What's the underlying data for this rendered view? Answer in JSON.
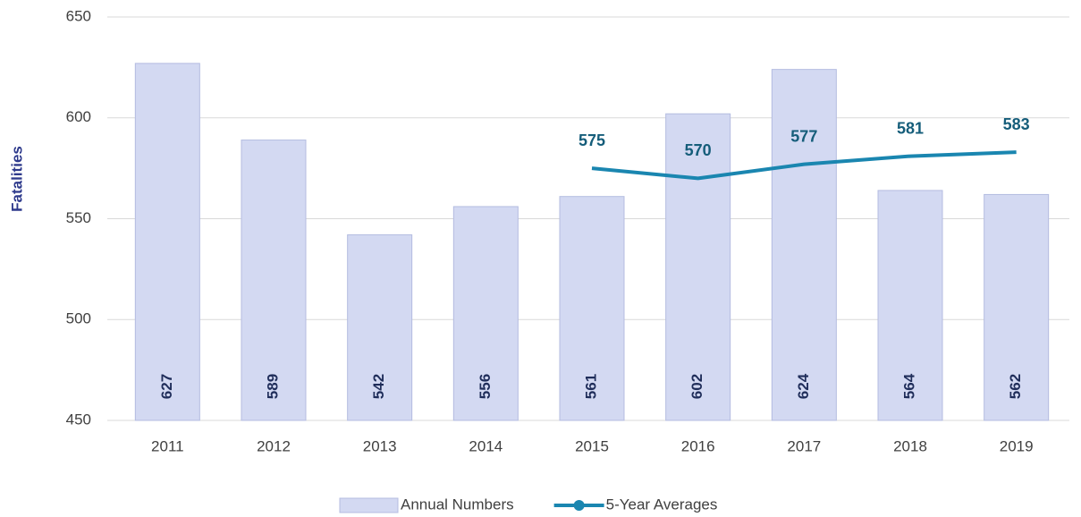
{
  "chart_data": {
    "type": "bar",
    "y_label": "Fatalities",
    "categories": [
      "2011",
      "2012",
      "2013",
      "2014",
      "2015",
      "2016",
      "2017",
      "2018",
      "2019"
    ],
    "series": [
      {
        "name": "Annual Numbers",
        "type": "bar",
        "color": "#d3d9f2",
        "values": [
          627,
          589,
          542,
          556,
          561,
          602,
          624,
          564,
          562
        ]
      },
      {
        "name": "5-Year Averages",
        "type": "line",
        "color": "#1a86b0",
        "values": [
          null,
          null,
          null,
          null,
          575,
          570,
          577,
          581,
          583
        ]
      }
    ],
    "ylim": [
      450,
      650
    ],
    "yticks": [
      450,
      500,
      550,
      600,
      650
    ],
    "grid": true,
    "legend": "bottom"
  }
}
